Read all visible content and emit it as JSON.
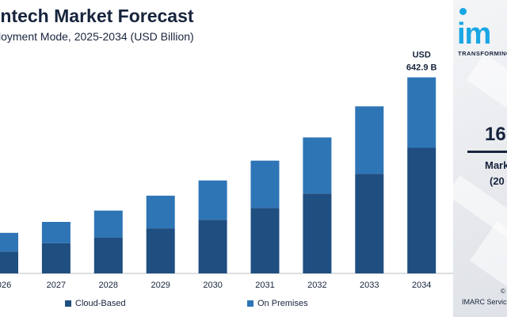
{
  "header": {
    "title": "intech Market Forecast",
    "subtitle": "loyment Mode, 2025-2034 (USD Billion)"
  },
  "chart_data": {
    "type": "bar",
    "stacked": true,
    "categories": [
      "026",
      "2027",
      "2028",
      "2029",
      "2030",
      "2031",
      "2032",
      "2033",
      "2034"
    ],
    "series": [
      {
        "name": "Cloud-Based",
        "color": "#1f4e80",
        "values": [
          72,
          99,
          118,
          148,
          176,
          215,
          262,
          327,
          412
        ]
      },
      {
        "name": "On Premises",
        "color": "#2e75b6",
        "values": [
          61,
          70,
          88,
          107,
          129,
          155,
          184,
          221,
          231
        ]
      }
    ],
    "value_label": {
      "line1": "USD",
      "line2": "642.9 B"
    },
    "ylim": [
      0,
      720
    ],
    "legend_position": "bottom",
    "grid": false
  },
  "side_panel": {
    "logo_text": "im",
    "tagline": "TRANSFORMING",
    "cagr_value": "16",
    "cagr_label_line1": "Mark",
    "cagr_label_line2": "(20",
    "copyright": "©",
    "source": "IMARC Service"
  }
}
